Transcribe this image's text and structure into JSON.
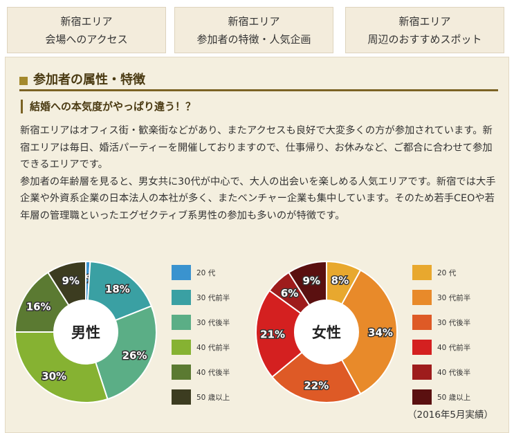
{
  "tabs": [
    {
      "line1": "新宿エリア",
      "line2": "会場へのアクセス"
    },
    {
      "line1": "新宿エリア",
      "line2": "参加者の特徴・人気企画"
    },
    {
      "line1": "新宿エリア",
      "line2": "周辺のおすすめスポット"
    }
  ],
  "section": {
    "title": "参加者の属性・特徴",
    "subtitle": "結婚への本気度がやっぱり違う！？",
    "paragraphs": [
      "新宿エリアはオフィス街・歓楽街などがあり、またアクセスも良好で大変多くの方が参加されています。新宿エリアは毎日、婚活パーティーを開催しておりますので、仕事帰り、お休みなど、ご都合に合わせて参加できるエリアです。",
      "参加者の年齢層を見ると、男女共に30代が中心で、大人の出会いを楽しめる人気エリアです。新宿では大手企業や外資系企業の日本法人の本社が多く、またベンチャー企業も集中しています。そのため若手CEOや若年層の管理職といったエグゼクティブ系男性の参加も多いのが特徴です。"
    ],
    "note": "（2016年5月実績）"
  },
  "chart_data": [
    {
      "type": "pie",
      "center_label": "男性",
      "categories": [
        "20 代",
        "30 代前半",
        "30 代後半",
        "40 代前半",
        "40 代後半",
        "50 歳以上"
      ],
      "values": [
        1,
        18,
        26,
        30,
        16,
        9
      ],
      "labels": [
        "1%",
        "18%",
        "26%",
        "30%",
        "16%",
        "9%"
      ],
      "colors": [
        "#3a93cf",
        "#3aa0a3",
        "#5bae86",
        "#86b232",
        "#5b7a32",
        "#3c3c20"
      ]
    },
    {
      "type": "pie",
      "center_label": "女性",
      "categories": [
        "20 代",
        "30 代前半",
        "30 代後半",
        "40 代前半",
        "40 代後半",
        "50 歳以上"
      ],
      "values": [
        8,
        34,
        22,
        21,
        6,
        9
      ],
      "labels": [
        "8%",
        "34%",
        "22%",
        "21%",
        "6%",
        "9%"
      ],
      "colors": [
        "#e8a82e",
        "#e88a2a",
        "#de5a26",
        "#d42020",
        "#9e1c1c",
        "#5a1010"
      ]
    }
  ]
}
